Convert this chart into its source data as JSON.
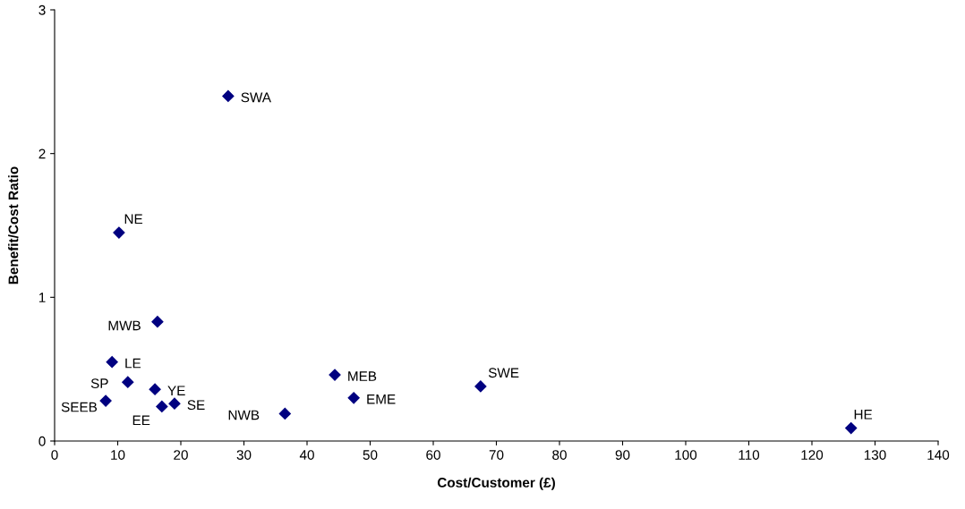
{
  "chart_data": {
    "type": "scatter",
    "xlabel": "Cost/Customer (£)",
    "ylabel": "Benefit/Cost Ratio",
    "x": [
      27.5,
      10.2,
      16.3,
      9.1,
      11.6,
      15.9,
      8.1,
      17.0,
      19.0,
      36.5,
      44.4,
      47.4,
      67.5,
      126.2
    ],
    "series": [
      {
        "color": "#000080",
        "values": [
          2.4,
          1.45,
          0.83,
          0.55,
          0.41,
          0.36,
          0.28,
          0.24,
          0.26,
          0.19,
          0.46,
          0.3,
          0.38,
          0.09
        ]
      }
    ],
    "annotations": [
      {
        "text": "SWA",
        "x": 27.5,
        "y": 2.4
      },
      {
        "text": "NE",
        "x": 10.2,
        "y": 1.45
      },
      {
        "text": "MWB",
        "x": 16.3,
        "y": 0.83
      },
      {
        "text": "LE",
        "x": 9.1,
        "y": 0.55
      },
      {
        "text": "SP",
        "x": 11.6,
        "y": 0.41
      },
      {
        "text": "YE",
        "x": 15.9,
        "y": 0.36
      },
      {
        "text": "SEEB",
        "x": 8.1,
        "y": 0.28
      },
      {
        "text": "EE",
        "x": 17.0,
        "y": 0.24
      },
      {
        "text": "SE",
        "x": 19.0,
        "y": 0.26
      },
      {
        "text": "NWB",
        "x": 36.5,
        "y": 0.19
      },
      {
        "text": "MEB",
        "x": 44.4,
        "y": 0.46
      },
      {
        "text": "EME",
        "x": 47.4,
        "y": 0.3
      },
      {
        "text": "SWE",
        "x": 67.5,
        "y": 0.38
      },
      {
        "text": "HE",
        "x": 126.2,
        "y": 0.09
      }
    ],
    "xlim": [
      0,
      140
    ],
    "xticks": [
      0,
      10,
      20,
      30,
      40,
      50,
      60,
      70,
      80,
      90,
      100,
      110,
      120,
      130,
      140
    ],
    "ylim": [
      0,
      3
    ],
    "yticks": [
      0,
      1,
      2,
      3
    ],
    "grid": false,
    "legend": false,
    "marker": "diamond"
  }
}
